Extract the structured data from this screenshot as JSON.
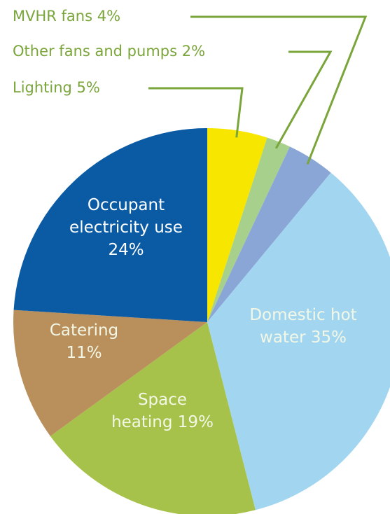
{
  "chart_data": {
    "type": "pie",
    "title": "",
    "slices": [
      {
        "name": "Lighting",
        "value": 5,
        "color": "#f6e600",
        "label_lines": [
          "Lighting 5%"
        ],
        "label_placement": "outside"
      },
      {
        "name": "Other fans and pumps",
        "value": 2,
        "color": "#a7d08c",
        "label_lines": [
          "Other fans and pumps 2%"
        ],
        "label_placement": "outside"
      },
      {
        "name": "MVHR fans",
        "value": 4,
        "color": "#8aa6d6",
        "label_lines": [
          "MVHR fans 4%"
        ],
        "label_placement": "outside"
      },
      {
        "name": "Domestic hot water",
        "value": 35,
        "color": "#a2d6f0",
        "label_lines": [
          "Domestic hot",
          "water 35%"
        ],
        "label_placement": "inside"
      },
      {
        "name": "Space heating",
        "value": 19,
        "color": "#a6c24a",
        "label_lines": [
          "Space",
          "heating 19%"
        ],
        "label_placement": "inside"
      },
      {
        "name": "Catering",
        "value": 11,
        "color": "#b98f5c",
        "label_lines": [
          "Catering",
          "11%"
        ],
        "label_placement": "inside"
      },
      {
        "name": "Occupant electricity use",
        "value": 24,
        "color": "#0a5aa4",
        "label_lines": [
          "Occupant",
          "electricity use",
          "24%"
        ],
        "label_placement": "inside"
      }
    ],
    "leader_line_color": "#7aa53a"
  }
}
